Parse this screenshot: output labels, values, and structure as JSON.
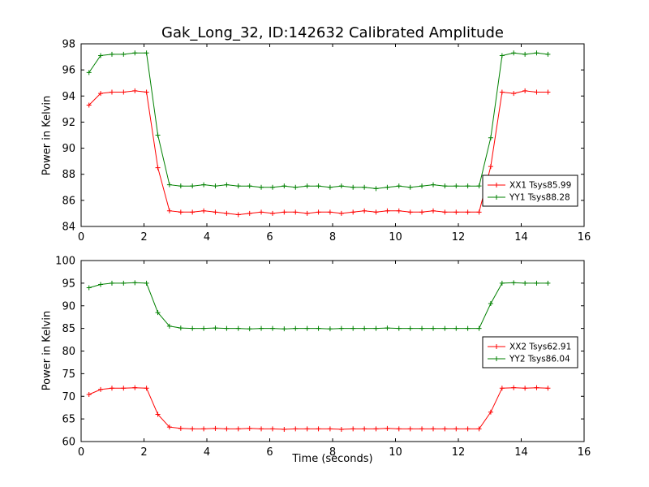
{
  "figure": {
    "background": "#ffffff"
  },
  "chart_data": [
    {
      "type": "line",
      "title": "Gak_Long_32, ID:142632 Calibrated Amplitude",
      "xlabel": "",
      "ylabel": "Power in Kelvin",
      "xlim": [
        0,
        16
      ],
      "ylim": [
        84,
        98
      ],
      "xticks": [
        0,
        2,
        4,
        6,
        8,
        10,
        12,
        14,
        16
      ],
      "yticks": [
        84,
        86,
        88,
        90,
        92,
        94,
        96,
        98
      ],
      "grid": false,
      "marker": "+",
      "linestyle": "-",
      "legend_position": "right-lower",
      "x": [
        0.25,
        0.62,
        0.98,
        1.35,
        1.71,
        2.08,
        2.44,
        2.81,
        3.17,
        3.54,
        3.9,
        4.27,
        4.63,
        5.0,
        5.36,
        5.73,
        6.09,
        6.46,
        6.82,
        7.19,
        7.55,
        7.92,
        8.28,
        8.65,
        9.01,
        9.38,
        9.74,
        10.11,
        10.47,
        10.84,
        11.2,
        11.57,
        11.93,
        12.3,
        12.66,
        13.03,
        13.39,
        13.76,
        14.12,
        14.49,
        14.85
      ],
      "series": [
        {
          "name": "XX1 Tsys85.99",
          "color": "#ff0000",
          "values": [
            93.3,
            94.2,
            94.3,
            94.3,
            94.4,
            94.3,
            88.5,
            85.2,
            85.1,
            85.1,
            85.2,
            85.1,
            85.0,
            84.9,
            85.0,
            85.1,
            85.0,
            85.1,
            85.1,
            85.0,
            85.1,
            85.1,
            85.0,
            85.1,
            85.2,
            85.1,
            85.2,
            85.2,
            85.1,
            85.1,
            85.2,
            85.1,
            85.1,
            85.1,
            85.1,
            88.6,
            94.3,
            94.2,
            94.4,
            94.3,
            94.3
          ]
        },
        {
          "name": "YY1 Tsys88.28",
          "color": "#008000",
          "values": [
            95.8,
            97.1,
            97.2,
            97.2,
            97.3,
            97.3,
            91.0,
            87.2,
            87.1,
            87.1,
            87.2,
            87.1,
            87.2,
            87.1,
            87.1,
            87.0,
            87.0,
            87.1,
            87.0,
            87.1,
            87.1,
            87.0,
            87.1,
            87.0,
            87.0,
            86.9,
            87.0,
            87.1,
            87.0,
            87.1,
            87.2,
            87.1,
            87.1,
            87.1,
            87.1,
            90.8,
            97.1,
            97.3,
            97.2,
            97.3,
            97.2
          ]
        }
      ]
    },
    {
      "type": "line",
      "title": "",
      "xlabel": "Time (seconds)",
      "ylabel": "Power in Kelvin",
      "xlim": [
        0,
        16
      ],
      "ylim": [
        60,
        100
      ],
      "xticks": [
        0,
        2,
        4,
        6,
        8,
        10,
        12,
        14,
        16
      ],
      "yticks": [
        60,
        65,
        70,
        75,
        80,
        85,
        90,
        95,
        100
      ],
      "grid": false,
      "marker": "+",
      "linestyle": "-",
      "legend_position": "right-middle",
      "x": [
        0.25,
        0.62,
        0.98,
        1.35,
        1.71,
        2.08,
        2.44,
        2.81,
        3.17,
        3.54,
        3.9,
        4.27,
        4.63,
        5.0,
        5.36,
        5.73,
        6.09,
        6.46,
        6.82,
        7.19,
        7.55,
        7.92,
        8.28,
        8.65,
        9.01,
        9.38,
        9.74,
        10.11,
        10.47,
        10.84,
        11.2,
        11.57,
        11.93,
        12.3,
        12.66,
        13.03,
        13.39,
        13.76,
        14.12,
        14.49,
        14.85
      ],
      "series": [
        {
          "name": "XX2 Tsys62.91",
          "color": "#ff0000",
          "values": [
            70.4,
            71.5,
            71.8,
            71.8,
            71.9,
            71.8,
            66.0,
            63.2,
            62.9,
            62.8,
            62.8,
            62.9,
            62.8,
            62.8,
            62.9,
            62.8,
            62.8,
            62.7,
            62.8,
            62.8,
            62.8,
            62.8,
            62.7,
            62.8,
            62.8,
            62.8,
            62.9,
            62.8,
            62.8,
            62.8,
            62.8,
            62.8,
            62.8,
            62.8,
            62.8,
            66.5,
            71.8,
            71.9,
            71.8,
            71.9,
            71.8
          ]
        },
        {
          "name": "YY2 Tsys86.04",
          "color": "#008000",
          "values": [
            94.0,
            94.7,
            95.0,
            95.0,
            95.1,
            95.0,
            88.5,
            85.5,
            85.1,
            85.0,
            85.0,
            85.1,
            85.0,
            85.0,
            84.9,
            85.0,
            85.0,
            84.9,
            85.0,
            85.0,
            85.0,
            84.9,
            85.0,
            85.0,
            85.0,
            85.0,
            85.1,
            85.0,
            85.0,
            85.0,
            85.0,
            85.0,
            85.0,
            85.0,
            85.0,
            90.5,
            95.0,
            95.1,
            95.0,
            95.0,
            95.0
          ]
        }
      ]
    }
  ]
}
